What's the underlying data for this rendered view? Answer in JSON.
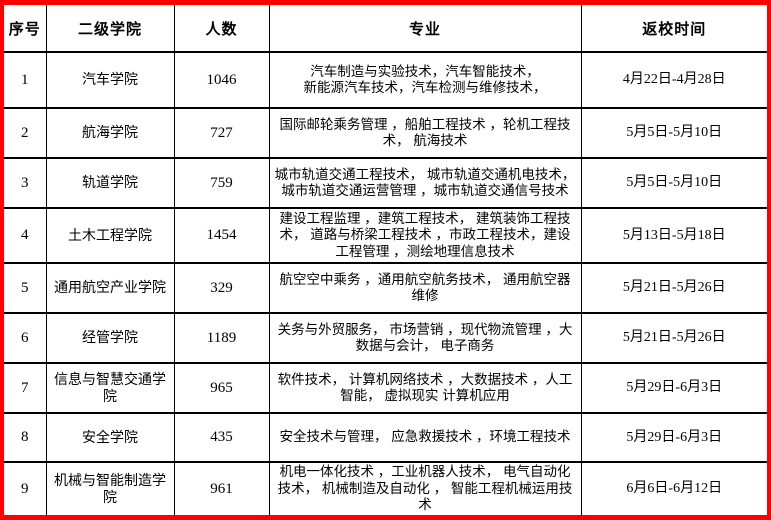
{
  "colors": {
    "outer_border": "#ff0000",
    "grid": "#000000",
    "background": "#ffffff",
    "text": "#000000"
  },
  "table": {
    "columns": [
      {
        "key": "seq",
        "label": "序号"
      },
      {
        "key": "college",
        "label": "二级学院"
      },
      {
        "key": "count",
        "label": "人数"
      },
      {
        "key": "majors",
        "label": "专业"
      },
      {
        "key": "return_time",
        "label": "返校时间"
      }
    ],
    "rows": [
      {
        "seq": "1",
        "college": "汽车学院",
        "count": "1046",
        "majors": "汽车制造与实验技术，汽车智能技术，\n新能源汽车技术，汽车检测与维修技术，",
        "return_time": "4月22日-4月28日"
      },
      {
        "seq": "2",
        "college": "航海学院",
        "count": "727",
        "majors": "国际邮轮乘务管理 ，船舶工程技术 ，轮机工程技术， 航海技术",
        "return_time": "5月5日-5月10日"
      },
      {
        "seq": "3",
        "college": "轨道学院",
        "count": "759",
        "majors": "城市轨道交通工程技术， 城市轨道交通机电技术，城市轨道交通运营管理 ，城市轨道交通信号技术",
        "return_time": "5月5日-5月10日"
      },
      {
        "seq": "4",
        "college": "土木工程学院",
        "count": "1454",
        "majors": "建设工程监理 ，建筑工程技术， 建筑装饰工程技术， 道路与桥梁工程技术 ，市政工程技术，建设工程管理 ，测绘地理信息技术",
        "return_time": "5月13日-5月18日"
      },
      {
        "seq": "5",
        "college": "通用航空产业学院",
        "count": "329",
        "majors": "航空空中乘务 ，通用航空航务技术， 通用航空器维修",
        "return_time": "5月21日-5月26日"
      },
      {
        "seq": "6",
        "college": "经管学院",
        "count": "1189",
        "majors": "关务与外贸服务， 市场营销 ，现代物流管理 ，大数据与会计， 电子商务",
        "return_time": "5月21日-5月26日"
      },
      {
        "seq": "7",
        "college": "信息与智慧交通学院",
        "count": "965",
        "majors": "软件技术， 计算机网络技术 ，大数据技术 ，人工智能， 虚拟现实 计算机应用",
        "return_time": "5月29日-6月3日"
      },
      {
        "seq": "8",
        "college": "安全学院",
        "count": "435",
        "majors": "安全技术与管理， 应急救援技术 ，环境工程技术",
        "return_time": "5月29日-6月3日"
      },
      {
        "seq": "9",
        "college": "机械与智能制造学院",
        "count": "961",
        "majors": "机电一体化技术 ，工业机器人技术， 电气自动化技术， 机械制造及自动化 ， 智能工程机械运用技术",
        "return_time": "6月6日-6月12日"
      }
    ]
  }
}
